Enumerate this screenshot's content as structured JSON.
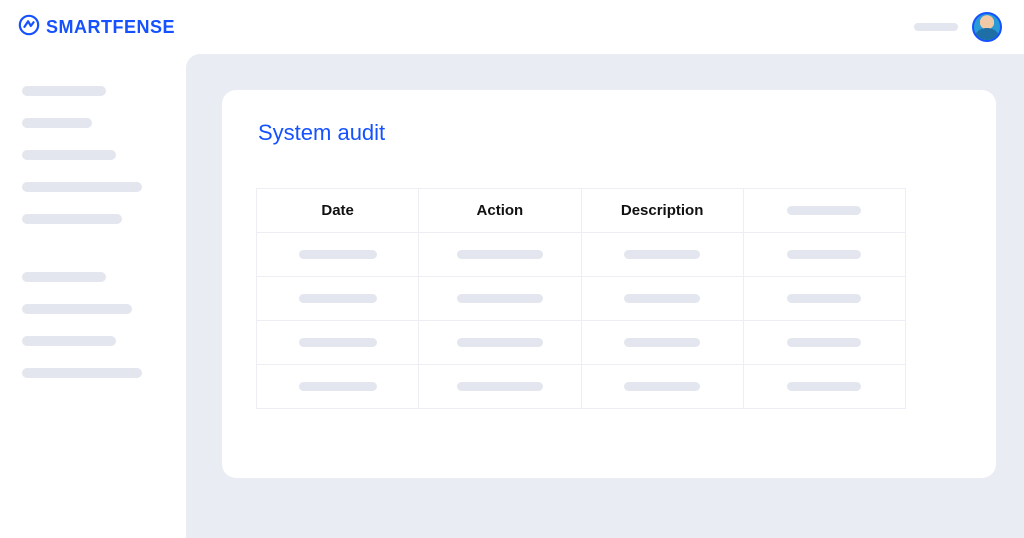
{
  "brand": {
    "name": "SMARTFENSE"
  },
  "colors": {
    "accent": "#1551ff",
    "placeholder": "#e3e6ee",
    "stage_bg": "#e9ecf3",
    "card_bg": "#ffffff",
    "table_border": "#eceef3",
    "text": "#111111"
  },
  "sidebar": {
    "group1_widths": [
      84,
      70,
      94,
      120,
      100
    ],
    "group2_widths": [
      84,
      110,
      94,
      120
    ]
  },
  "topbar": {
    "pill_width": 44
  },
  "page": {
    "title": "System audit"
  },
  "table": {
    "columns": [
      "Date",
      "Action",
      "Description",
      ""
    ],
    "header_placeholder_width": 74,
    "rows": [
      [
        78,
        86,
        76,
        74
      ],
      [
        78,
        86,
        76,
        74
      ],
      [
        78,
        86,
        76,
        74
      ],
      [
        78,
        86,
        76,
        74
      ]
    ]
  }
}
